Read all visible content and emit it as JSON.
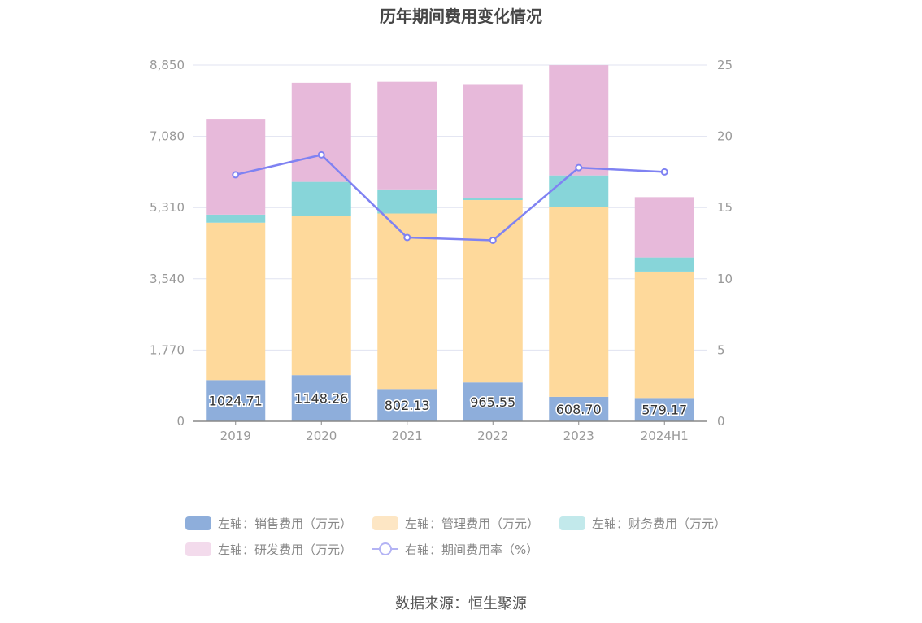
{
  "chart_data": {
    "type": "bar",
    "title": "历年期间费用变化情况",
    "categories": [
      "2019",
      "2020",
      "2021",
      "2022",
      "2023",
      "2024H1"
    ],
    "left_axis": {
      "min": 0,
      "max": 8850,
      "ticks": [
        "0",
        "1,770",
        "3,540",
        "5,310",
        "7,080",
        "8,850"
      ],
      "tick_values": [
        0,
        1770,
        3540,
        5310,
        7080,
        8850
      ]
    },
    "right_axis": {
      "min": 0,
      "max": 25,
      "ticks": [
        "0",
        "5",
        "10",
        "15",
        "20",
        "25"
      ],
      "tick_values": [
        0,
        5,
        10,
        15,
        20,
        25
      ]
    },
    "series": [
      {
        "name": "左轴：销售费用（万元）",
        "axis": "left",
        "kind": "bar",
        "color": "#8eaedb",
        "values": [
          1024.71,
          1148.26,
          802.13,
          965.55,
          608.7,
          579.17
        ],
        "labels": [
          "1024.71",
          "1148.26",
          "802.13",
          "965.55",
          "608.70",
          "579.17"
        ]
      },
      {
        "name": "左轴：管理费用（万元）",
        "axis": "left",
        "kind": "bar",
        "color": "#fed99b",
        "values": [
          3910,
          3960,
          4360,
          4530,
          4720,
          3140
        ]
      },
      {
        "name": "左轴：财务费用（万元）",
        "axis": "left",
        "kind": "bar",
        "color": "#87d5d9",
        "values": [
          200,
          840,
          600,
          50,
          780,
          350
        ]
      },
      {
        "name": "左轴：研发费用（万元）",
        "axis": "left",
        "kind": "bar",
        "color": "#e7b9da",
        "values": [
          2380,
          2460,
          2670,
          2830,
          2740,
          1500
        ]
      },
      {
        "name": "右轴：期间费用率（%）",
        "axis": "right",
        "kind": "line",
        "color": "#7f82f2",
        "values": [
          17.3,
          18.7,
          12.9,
          12.7,
          17.8,
          17.5
        ]
      }
    ]
  },
  "legend": [
    {
      "label": "左轴：销售费用（万元）",
      "color": "#8eaedb"
    },
    {
      "label": "左轴：管理费用（万元）",
      "color": "#fde6c4"
    },
    {
      "label": "左轴：财务费用（万元）",
      "color": "#c2e9eb"
    },
    {
      "label": "左轴：研发费用（万元）",
      "color": "#f3dbec"
    },
    {
      "label": "右轴：期间费用率（%）",
      "color": "#b3b3f4"
    }
  ],
  "source": "数据来源：恒生聚源"
}
